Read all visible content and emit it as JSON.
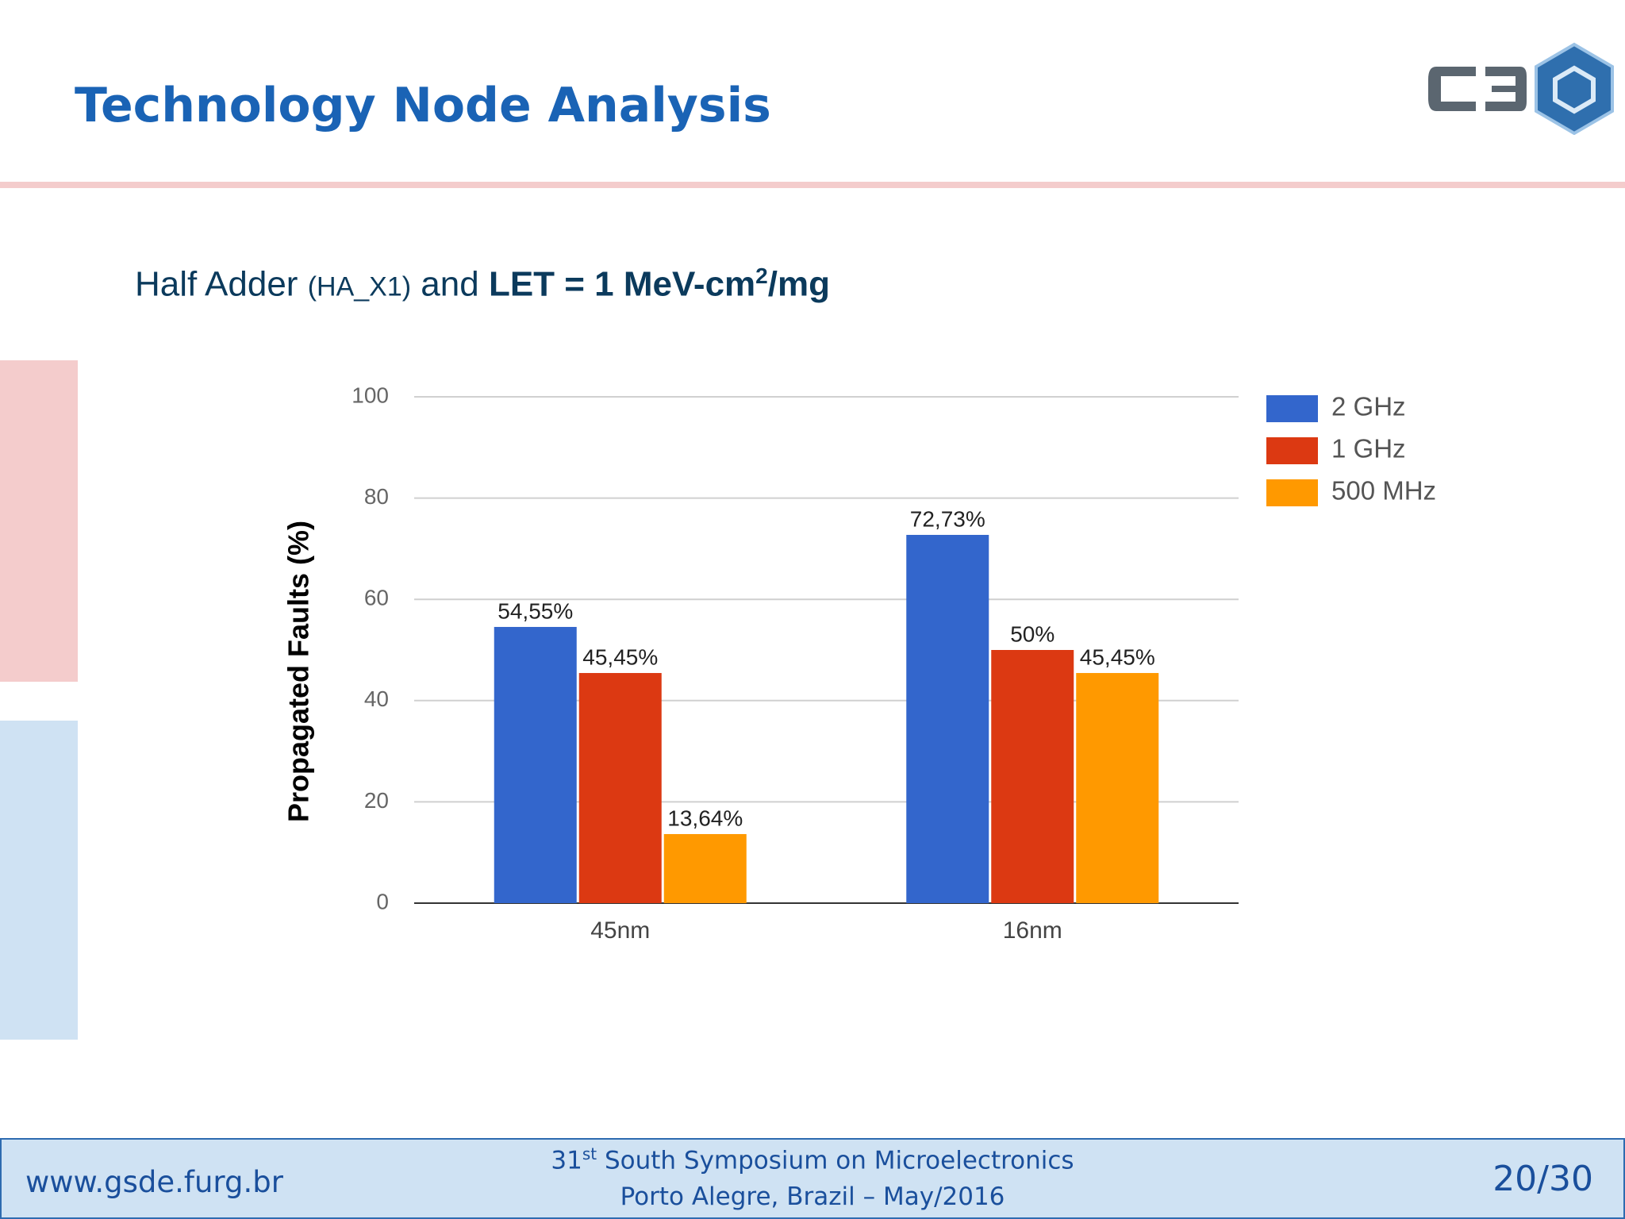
{
  "slide": {
    "title": "Technology Node Analysis",
    "subtitle": [
      "Half Adder ",
      "(HA_X1)",
      " and ",
      "LET = 1 MeV-cm",
      "2",
      "/mg"
    ]
  },
  "footer": {
    "url": "www.gsde.furg.br",
    "event_number": "31",
    "event_suffix": "st",
    "event_name": " South Symposium on Microelectronics",
    "place": "Porto Alegre, Brazil – May/2016",
    "page": "20/30"
  },
  "chart_data": {
    "type": "bar",
    "y_label": "Propagated Faults (%)",
    "categories": [
      "45nm",
      "16nm"
    ],
    "series": [
      {
        "name": "2 GHz",
        "color": "#3366cc",
        "values": [
          54.55,
          72.73
        ],
        "value_labels": [
          "54,55%",
          "72,73%"
        ]
      },
      {
        "name": "1 GHz",
        "color": "#dc3912",
        "values": [
          45.45,
          50
        ],
        "value_labels": [
          "45,45%",
          "50%"
        ]
      },
      {
        "name": "500 MHz",
        "color": "#ff9900",
        "values": [
          13.64,
          45.45
        ],
        "value_labels": [
          "13,64%",
          "45,45%"
        ]
      }
    ],
    "ylim": [
      0,
      100
    ],
    "yticks": [
      0,
      20,
      40,
      60,
      80,
      100
    ],
    "grid": true,
    "legend": "right"
  }
}
